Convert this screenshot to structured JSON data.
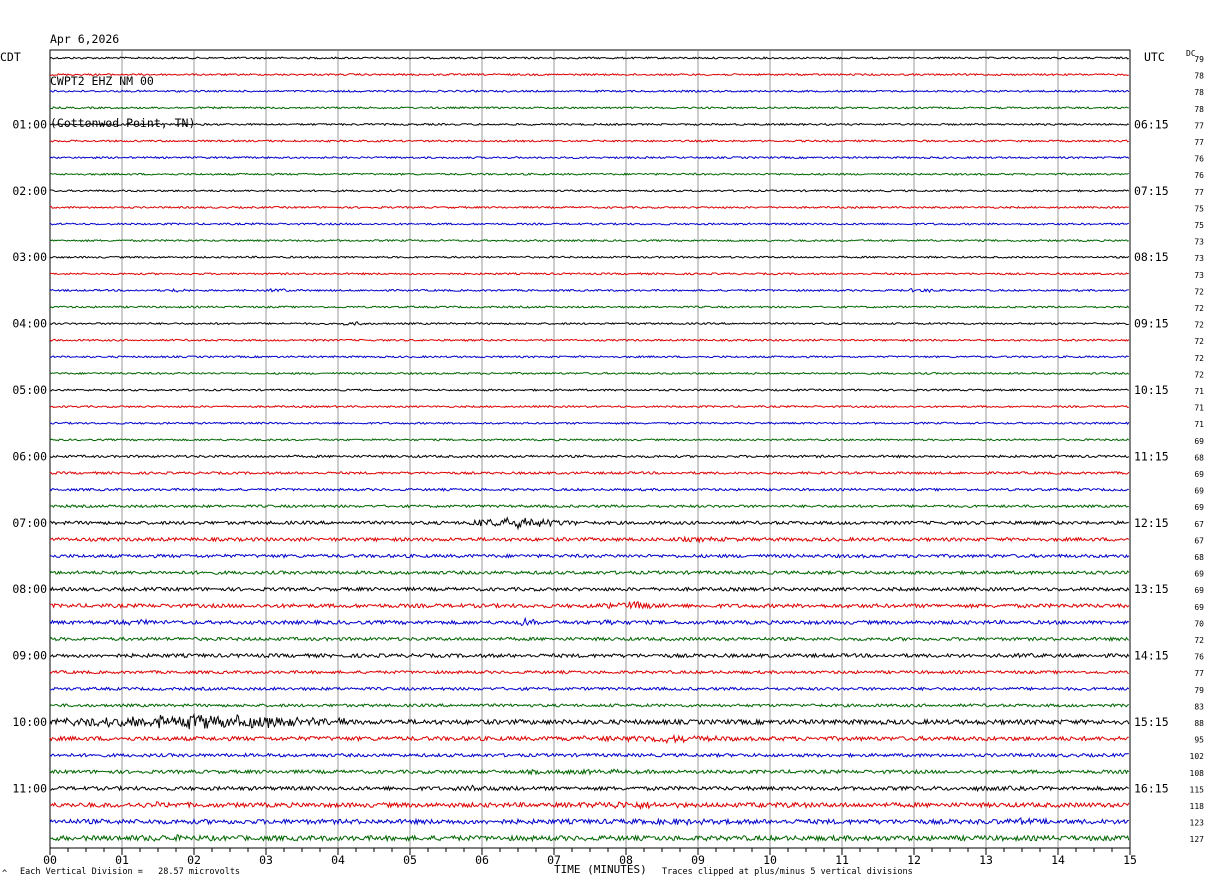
{
  "header": {
    "date": "Apr 6,2026",
    "station": "CWPT2 EHZ NM 00",
    "location": "(Cottonwod Point, TN)"
  },
  "left_timezone": "CDT",
  "right_timezone": "UTC",
  "dc_label": "DC",
  "footer": {
    "vertical_division": "Each Vertical Division =   28.57 microvolts",
    "clip_note": "Traces clipped at plus/minus 5 vertical divisions",
    "corner_mark": "^"
  },
  "colors": {
    "trace_cycle": [
      "#000000",
      "#dd0000",
      "#0000cc",
      "#006600"
    ],
    "grid": "#808080"
  },
  "chart_data": {
    "type": "line",
    "subtype": "helicorder",
    "xlabel": "TIME (MINUTES)",
    "x_tick_labels": [
      "00",
      "01",
      "02",
      "03",
      "04",
      "05",
      "06",
      "07",
      "08",
      "09",
      "10",
      "11",
      "12",
      "13",
      "14",
      "15"
    ],
    "xlim": [
      0,
      15
    ],
    "traces_per_hour": 4,
    "minutes_per_trace": 15,
    "left_hour_labels": [
      "01:00",
      "02:00",
      "03:00",
      "04:00",
      "05:00",
      "06:00",
      "07:00",
      "08:00",
      "09:00",
      "10:00",
      "11:00"
    ],
    "right_hour_labels": [
      "06:15",
      "07:15",
      "08:15",
      "09:15",
      "10:15",
      "11:15",
      "12:15",
      "13:15",
      "14:15",
      "15:15",
      "16:15"
    ],
    "dc_values": [
      "79",
      "78",
      "78",
      "78",
      "77",
      "77",
      "76",
      "76",
      "77",
      "75",
      "75",
      "73",
      "73",
      "73",
      "72",
      "72",
      "72",
      "72",
      "72",
      "72",
      "71",
      "71",
      "71",
      "69",
      "68",
      "69",
      "69",
      "69",
      "67",
      "67",
      "68",
      "69",
      "69",
      "69",
      "70",
      "72",
      "76",
      "77",
      "79",
      "83",
      "88",
      "95",
      "102",
      "108",
      "115",
      "118",
      "123",
      "127"
    ],
    "trace_amplitude": [
      1.0,
      1.0,
      1.0,
      1.0,
      1.0,
      1.0,
      1.0,
      1.0,
      1.0,
      1.0,
      1.0,
      1.0,
      1.0,
      1.0,
      1.0,
      1.0,
      1.0,
      1.0,
      1.0,
      1.0,
      1.0,
      1.0,
      1.0,
      1.0,
      1.3,
      1.3,
      1.3,
      1.4,
      1.8,
      1.9,
      1.8,
      1.8,
      1.9,
      2.1,
      2.0,
      1.8,
      2.0,
      1.6,
      1.6,
      1.6,
      2.6,
      2.3,
      1.8,
      1.9,
      2.1,
      2.5,
      2.6,
      2.7
    ],
    "events": [
      {
        "trace": 14,
        "minute_start": 1.6,
        "minute_end": 2.0,
        "peak": 2.5
      },
      {
        "trace": 14,
        "minute_start": 2.9,
        "minute_end": 3.4,
        "peak": 2.5
      },
      {
        "trace": 14,
        "minute_start": 11.8,
        "minute_end": 12.4,
        "peak": 2.5
      },
      {
        "trace": 16,
        "minute_start": 3.9,
        "minute_end": 4.4,
        "peak": 3
      },
      {
        "trace": 28,
        "minute_start": 5.8,
        "minute_end": 7.3,
        "peak": 7
      },
      {
        "trace": 29,
        "minute_start": 8.0,
        "minute_end": 10.0,
        "peak": 3
      },
      {
        "trace": 33,
        "minute_start": 7.5,
        "minute_end": 8.6,
        "peak": 5
      },
      {
        "trace": 34,
        "minute_start": 0.5,
        "minute_end": 1.6,
        "peak": 4
      },
      {
        "trace": 34,
        "minute_start": 6.4,
        "minute_end": 6.8,
        "peak": 5
      },
      {
        "trace": 34,
        "minute_start": 7.5,
        "minute_end": 7.9,
        "peak": 5
      },
      {
        "trace": 36,
        "minute_start": 12.9,
        "minute_end": 14.2,
        "peak": 3
      },
      {
        "trace": 40,
        "minute_start": 0.1,
        "minute_end": 4.2,
        "peak": 9
      },
      {
        "trace": 41,
        "minute_start": 7.0,
        "minute_end": 9.6,
        "peak": 5
      },
      {
        "trace": 43,
        "minute_start": 5.5,
        "minute_end": 9.2,
        "peak": 3
      },
      {
        "trace": 44,
        "minute_start": 5.5,
        "minute_end": 6.5,
        "peak": 4
      },
      {
        "trace": 44,
        "minute_start": 12.0,
        "minute_end": 14.0,
        "peak": 3
      },
      {
        "trace": 45,
        "minute_start": 0.8,
        "minute_end": 2.2,
        "peak": 4
      },
      {
        "trace": 45,
        "minute_start": 7.0,
        "minute_end": 9.0,
        "peak": 5
      },
      {
        "trace": 45,
        "minute_start": 9.8,
        "minute_end": 10.8,
        "peak": 4
      },
      {
        "trace": 46,
        "minute_start": 7.8,
        "minute_end": 9.6,
        "peak": 4
      },
      {
        "trace": 46,
        "minute_start": 12.8,
        "minute_end": 14.2,
        "peak": 4
      },
      {
        "trace": 47,
        "minute_start": 0.4,
        "minute_end": 2.8,
        "peak": 4
      }
    ]
  }
}
